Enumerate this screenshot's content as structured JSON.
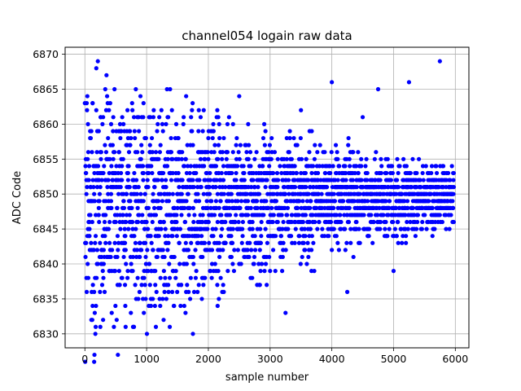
{
  "chart_data": {
    "type": "scatter",
    "title": "channel054 logain raw data",
    "xlabel": "sample number",
    "ylabel": "ADC Code",
    "xlim": [
      -320,
      6220
    ],
    "ylim": [
      6828.0,
      6871.0
    ],
    "xticks": [
      0,
      1000,
      2000,
      3000,
      4000,
      5000,
      6000
    ],
    "yticks": [
      6830,
      6835,
      6840,
      6845,
      6850,
      6855,
      6860,
      6865,
      6870
    ],
    "grid": true,
    "legend": "none",
    "series": [
      {
        "color": "#0000ff",
        "marker": "circle",
        "x_start": 0,
        "x_step": 25,
        "count": 240,
        "y": [
          6863,
          6838,
          6852,
          6846,
          6849,
          6834,
          6850,
          6844,
          6851,
          6848,
          6856,
          6842,
          6853,
          6847,
          6855,
          6850,
          6843,
          6849,
          6852,
          6846,
          6851,
          6848,
          6859,
          6845,
          6854,
          6849,
          6837,
          6850,
          6853,
          6847,
          6848,
          6852,
          6851,
          6845,
          6856,
          6849,
          6864,
          6846,
          6853,
          6850,
          6848,
          6851,
          6844,
          6854,
          6849,
          6852,
          6847,
          6855,
          6850,
          6848,
          6853,
          6846,
          6851,
          6849,
          6861,
          6847,
          6852,
          6850,
          6841,
          6853,
          6848,
          6851,
          6834,
          6849,
          6854,
          6846,
          6851,
          6850,
          6848,
          6852,
          6830,
          6847,
          6853,
          6851,
          6849,
          6855,
          6846,
          6850,
          6852,
          6848,
          6858,
          6853,
          6849,
          6851,
          6847,
          6854,
          6850,
          6848,
          6852,
          6846,
          6836,
          6851,
          6849,
          6853,
          6847,
          6850,
          6856,
          6848,
          6852,
          6849,
          6864,
          6851,
          6847,
          6853,
          6850,
          6848,
          6855,
          6846,
          6852,
          6849,
          6851,
          6853,
          6847,
          6850,
          6848,
          6854,
          6849,
          6851,
          6852,
          6846,
          6850,
          6848,
          6853,
          6849,
          6851,
          6855,
          6847,
          6850,
          6852,
          6848,
          6833,
          6849,
          6851,
          6853,
          6847,
          6850,
          6854,
          6848,
          6852,
          6849,
          6862,
          6851,
          6847,
          6853,
          6850,
          6848,
          6849,
          6852,
          6851,
          6846,
          6850,
          6853,
          6848,
          6849,
          6854,
          6851,
          6847,
          6850,
          6852,
          6849,
          6866,
          6848,
          6851,
          6853,
          6850,
          6847,
          6849,
          6852,
          6851,
          6848,
          6836,
          6850,
          6853,
          6849,
          6851,
          6847,
          6852,
          6850,
          6848,
          6854,
          6861,
          6849,
          6851,
          6853,
          6847,
          6850,
          6852,
          6848,
          6849,
          6851,
          6865,
          6850,
          6853,
          6847,
          6851,
          6849,
          6852,
          6848,
          6850,
          6854,
          6839,
          6851,
          6849,
          6853,
          6847,
          6850,
          6852,
          6848,
          6851,
          6849,
          6866,
          6853,
          6850,
          6847,
          6851,
          6849,
          6852,
          6848,
          6850,
          6854,
          6847,
          6851,
          6849,
          6853,
          6850,
          6848,
          6852,
          6846,
          6851,
          6849,
          6869,
          6850,
          6853,
          6847,
          6851,
          6849,
          6852,
          6848,
          6850,
          6853
        ],
        "band_min": [
          6833,
          6835,
          6838,
          6840,
          6842,
          6844,
          6845,
          6846
        ],
        "band_max": [
          6861,
          6860,
          6858,
          6857,
          6856,
          6855,
          6854,
          6853
        ]
      }
    ]
  }
}
